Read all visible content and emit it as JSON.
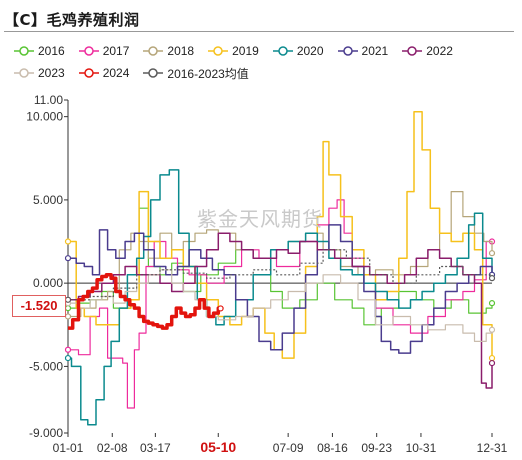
{
  "title": "【C】毛鸡养殖利润",
  "watermark": "紫金天风期货",
  "last_value_label": "-1.520",
  "chart_data": {
    "type": "line",
    "ylim": [
      -9,
      11
    ],
    "yticks": [
      "11.00",
      "10.000",
      "5.000",
      "0.000",
      "-5.000",
      "-9.000"
    ],
    "ytick_values": [
      11,
      10,
      5,
      0,
      -5,
      -9
    ],
    "xticks": [
      "01-01",
      "02-08",
      "03-17",
      "05-10",
      "07-09",
      "08-16",
      "09-23",
      "10-31",
      "12-31"
    ],
    "xtick_days": [
      1,
      39,
      76,
      130,
      190,
      228,
      266,
      304,
      365
    ],
    "highlight_xtick": "05-10",
    "series": [
      {
        "name": "2016",
        "color": "#58c433",
        "width": 1.2,
        "dash": "",
        "x": [
          1,
          10,
          20,
          30,
          40,
          55,
          62,
          70,
          80,
          90,
          100,
          115,
          130,
          145,
          160,
          175,
          185,
          200,
          215,
          230,
          245,
          255,
          265,
          270,
          285,
          300,
          315,
          330,
          345,
          360,
          365
        ],
        "y": [
          -1.5,
          -1.2,
          -1.0,
          -0.5,
          -1.5,
          -1.0,
          4.5,
          1.0,
          0.5,
          1.2,
          -0.5,
          0.5,
          1.2,
          2.0,
          1.5,
          -0.5,
          -1.5,
          -1.0,
          0.0,
          -1.0,
          -1.5,
          -2.5,
          -2.0,
          -1.5,
          -0.5,
          -1.0,
          -1.5,
          -1.0,
          -1.8,
          -1.5,
          -1.2
        ]
      },
      {
        "name": "2017",
        "color": "#ee2b9c",
        "width": 1.2,
        "dash": "",
        "x": [
          1,
          10,
          20,
          28,
          35,
          40,
          48,
          52,
          58,
          62,
          68,
          75,
          85,
          95,
          105,
          120,
          135,
          150,
          165,
          180,
          200,
          215,
          225,
          232,
          238,
          245,
          255,
          265,
          280,
          295,
          310,
          325,
          340,
          350,
          360,
          365
        ],
        "y": [
          -4.0,
          -4.3,
          -2.0,
          -1.5,
          -4.5,
          -4.5,
          -4.8,
          -7.5,
          -4.0,
          -3.0,
          1.0,
          2.5,
          1.5,
          0.8,
          0.5,
          0.0,
          1.0,
          2.0,
          1.5,
          1.0,
          2.5,
          3.5,
          4.5,
          5.0,
          3.0,
          1.5,
          0.0,
          -1.5,
          -2.5,
          -3.0,
          -2.0,
          -1.0,
          -0.5,
          0.2,
          2.5,
          2.5
        ]
      },
      {
        "name": "2018",
        "color": "#b5a579",
        "width": 1.2,
        "dash": "",
        "x": [
          1,
          12,
          25,
          35,
          45,
          55,
          62,
          70,
          80,
          90,
          100,
          110,
          120,
          130,
          145,
          160,
          175,
          190,
          205,
          220,
          235,
          250,
          265,
          280,
          295,
          310,
          320,
          330,
          340,
          350,
          358,
          365
        ],
        "y": [
          -2.0,
          -1.5,
          -1.0,
          -0.5,
          2.0,
          3.0,
          2.5,
          1.5,
          3.0,
          2.0,
          2.5,
          3.0,
          3.2,
          3.0,
          2.0,
          1.5,
          2.0,
          2.5,
          3.0,
          2.0,
          1.0,
          0.5,
          0.8,
          0.5,
          1.0,
          2.0,
          3.0,
          5.5,
          4.0,
          3.0,
          2.5,
          1.8
        ]
      },
      {
        "name": "2019",
        "color": "#f6c11c",
        "width": 1.5,
        "dash": "",
        "x": [
          1,
          8,
          15,
          25,
          35,
          45,
          55,
          62,
          70,
          80,
          90,
          100,
          110,
          120,
          130,
          140,
          150,
          160,
          170,
          178,
          185,
          195,
          205,
          215,
          220,
          225,
          235,
          245,
          255,
          265,
          275,
          285,
          292,
          298,
          305,
          312,
          320,
          330,
          340,
          350,
          357,
          365
        ],
        "y": [
          2.5,
          -1.5,
          -2.0,
          -2.5,
          -2.5,
          -1.5,
          -1.0,
          5.5,
          2.5,
          1.5,
          2.0,
          1.0,
          0.0,
          -1.0,
          -2.0,
          -2.5,
          -2.0,
          -1.5,
          -3.0,
          -4.0,
          -4.5,
          -3.0,
          1.0,
          4.0,
          8.5,
          6.5,
          4.0,
          2.0,
          0.5,
          -1.0,
          -0.5,
          1.5,
          5.5,
          10.3,
          8.0,
          4.5,
          3.0,
          2.5,
          3.0,
          2.0,
          -2.5,
          -4.5
        ]
      },
      {
        "name": "2020",
        "color": "#0b8a8e",
        "width": 1.5,
        "dash": "",
        "x": [
          1,
          4,
          8,
          12,
          18,
          25,
          32,
          38,
          45,
          52,
          60,
          66,
          72,
          80,
          88,
          96,
          105,
          112,
          120,
          128,
          135,
          145,
          160,
          175,
          190,
          205,
          215,
          225,
          235,
          245,
          255,
          265,
          275,
          285,
          295,
          305,
          315,
          325,
          335,
          345,
          350,
          357,
          365
        ],
        "y": [
          -4.5,
          -5.0,
          -5.0,
          -8.2,
          -8.5,
          -7.0,
          -5.0,
          -3.5,
          -1.5,
          0.5,
          1.5,
          2.8,
          5.0,
          6.5,
          6.8,
          3.0,
          1.0,
          -1.0,
          -2.0,
          -2.5,
          -2.0,
          -1.0,
          0.5,
          2.0,
          2.5,
          3.0,
          2.5,
          1.5,
          0.8,
          0.5,
          0.0,
          -0.5,
          -1.0,
          -1.5,
          -1.0,
          -0.5,
          0.0,
          0.5,
          1.5,
          3.5,
          4.2,
          1.5,
          0.5
        ]
      },
      {
        "name": "2021",
        "color": "#4a3c8e",
        "width": 1.5,
        "dash": "",
        "x": [
          1,
          8,
          15,
          22,
          28,
          35,
          42,
          50,
          58,
          66,
          75,
          85,
          95,
          105,
          115,
          125,
          135,
          145,
          155,
          165,
          175,
          185,
          195,
          205,
          215,
          225,
          235,
          245,
          255,
          265,
          270,
          278,
          285,
          295,
          305,
          315,
          325,
          335,
          345,
          355,
          365
        ],
        "y": [
          1.5,
          1.2,
          1.0,
          0.5,
          3.2,
          2.0,
          1.5,
          2.5,
          3.0,
          2.0,
          1.0,
          0.5,
          1.0,
          2.0,
          1.5,
          0.8,
          0.5,
          -1.0,
          -2.0,
          -3.5,
          -4.0,
          -3.0,
          -1.5,
          0.5,
          2.0,
          3.5,
          2.5,
          1.0,
          -0.5,
          -2.0,
          -3.5,
          -4.0,
          -4.2,
          -3.5,
          -2.5,
          -1.5,
          -0.5,
          0.0,
          0.5,
          1.0,
          0.5
        ]
      },
      {
        "name": "2022",
        "color": "#8a1d6b",
        "width": 1.5,
        "dash": "",
        "x": [
          1,
          10,
          20,
          30,
          40,
          50,
          60,
          70,
          80,
          90,
          100,
          110,
          120,
          130,
          140,
          150,
          160,
          170,
          180,
          190,
          200,
          215,
          230,
          245,
          260,
          275,
          290,
          300,
          310,
          320,
          330,
          340,
          350,
          356,
          360,
          365
        ],
        "y": [
          -1.0,
          -0.8,
          -0.5,
          0.0,
          0.5,
          1.0,
          0.5,
          0.5,
          0.0,
          -0.5,
          0.0,
          1.0,
          2.0,
          3.0,
          2.5,
          2.0,
          1.5,
          1.5,
          2.0,
          1.8,
          2.5,
          2.0,
          1.5,
          1.0,
          0.5,
          0.0,
          0.5,
          1.5,
          2.0,
          1.5,
          1.0,
          0.5,
          0.0,
          -6.0,
          -6.3,
          -4.8
        ]
      },
      {
        "name": "2023",
        "color": "#c9bcad",
        "width": 1.2,
        "dash": "",
        "x": [
          1,
          10,
          20,
          30,
          40,
          50,
          60,
          70,
          80,
          90,
          100,
          110,
          120,
          130,
          145,
          160,
          175,
          190,
          205,
          220,
          235,
          250,
          265,
          280,
          295,
          310,
          325,
          340,
          350,
          360,
          365
        ],
        "y": [
          -1.2,
          -1.5,
          -1.0,
          -0.8,
          -1.2,
          -0.5,
          0.0,
          0.5,
          0.8,
          0.0,
          -0.5,
          -1.0,
          -2.0,
          -2.2,
          -2.0,
          -1.5,
          -1.0,
          -0.5,
          0.0,
          0.5,
          0.0,
          -1.0,
          -2.5,
          -2.0,
          -2.5,
          -2.8,
          -2.5,
          -3.0,
          -3.5,
          -3.0,
          -2.8
        ]
      },
      {
        "name": "2024",
        "color": "#e3140d",
        "width": 3.5,
        "dash": "",
        "x": [
          1,
          5,
          10,
          14,
          18,
          22,
          26,
          30,
          34,
          38,
          42,
          46,
          50,
          54,
          58,
          62,
          66,
          70,
          74,
          78,
          82,
          86,
          90,
          94,
          98,
          102,
          106,
          110,
          114,
          118,
          122,
          126,
          130,
          132
        ],
        "y": [
          -2.7,
          -2.2,
          -1.0,
          -0.8,
          -0.5,
          -0.3,
          0.2,
          0.4,
          0.5,
          0.3,
          -0.5,
          -0.8,
          -1.0,
          -1.3,
          -1.5,
          -2.0,
          -2.3,
          -2.4,
          -2.5,
          -2.6,
          -2.7,
          -2.5,
          -2.0,
          -1.5,
          -1.8,
          -2.0,
          -1.9,
          -1.5,
          -1.0,
          -1.5,
          -2.0,
          -1.8,
          -1.5,
          -1.52
        ]
      },
      {
        "name": "2016-2023均值",
        "color": "#5a5a5a",
        "width": 1.2,
        "dash": "2,2",
        "x": [
          1,
          20,
          40,
          60,
          80,
          100,
          120,
          140,
          160,
          180,
          200,
          220,
          240,
          260,
          280,
          300,
          320,
          340,
          365
        ],
        "y": [
          -1.0,
          -0.8,
          -0.3,
          0.5,
          0.8,
          0.6,
          0.3,
          0.5,
          0.8,
          0.5,
          1.2,
          2.0,
          1.5,
          0.5,
          0.0,
          0.5,
          1.0,
          0.5,
          0.3
        ]
      }
    ]
  }
}
